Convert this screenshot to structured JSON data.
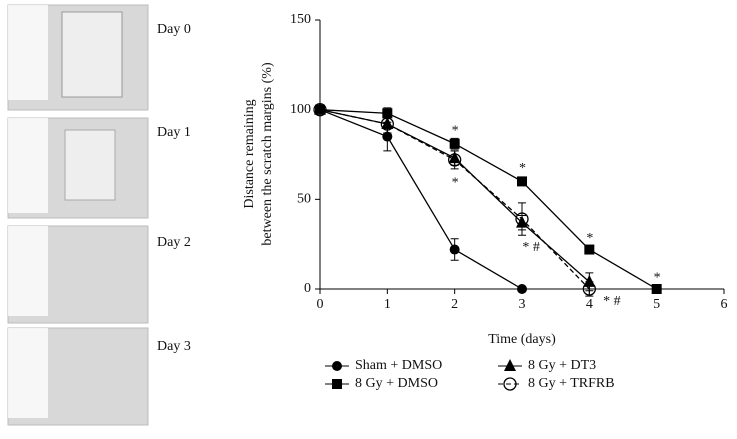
{
  "panels": [
    "Day 0",
    "Day 1",
    "Day 2",
    "Day 3"
  ],
  "chart_data": {
    "type": "line",
    "ylabel": [
      "Distance remaining",
      "between the scratch margins (%)"
    ],
    "xlabel": "Time (days)",
    "x": [
      0,
      1,
      2,
      3,
      4,
      5
    ],
    "xlim": [
      0,
      6
    ],
    "xticks": [
      0,
      1,
      2,
      3,
      4,
      5,
      6
    ],
    "ylim": [
      0,
      150
    ],
    "yticks": [
      0,
      50,
      100,
      150
    ],
    "series": [
      {
        "name": "Sham + DMSO",
        "color": "#000000",
        "marker": "circle",
        "dashed": false,
        "values": [
          100,
          85,
          22,
          0,
          null,
          null
        ],
        "errors": [
          2,
          8,
          6,
          0,
          null,
          null
        ]
      },
      {
        "name": "8 Gy + DMSO",
        "color": "#000000",
        "marker": "square",
        "dashed": false,
        "values": [
          100,
          98,
          81,
          60,
          22,
          0
        ],
        "errors": [
          2,
          3,
          3,
          2,
          2,
          0
        ]
      },
      {
        "name": "8 Gy + DT3",
        "color": "#000000",
        "marker": "triangle",
        "dashed": false,
        "values": [
          100,
          92,
          73,
          37,
          4,
          null
        ],
        "errors": [
          2,
          5,
          4,
          4,
          5,
          null
        ]
      },
      {
        "name": "8 Gy + TRFRB",
        "color": "#000000",
        "marker": "open-circle",
        "dashed": true,
        "values": [
          100,
          92,
          72,
          39,
          0,
          null
        ],
        "errors": [
          2,
          5,
          5,
          9,
          4,
          null
        ]
      }
    ],
    "annotations": [
      {
        "text": "*",
        "x": 2,
        "y": 88
      },
      {
        "text": "*",
        "x": 2,
        "y": 59
      },
      {
        "text": "*",
        "x": 3,
        "y": 67
      },
      {
        "text": "* #",
        "x": 3.05,
        "y": 23
      },
      {
        "text": "*",
        "x": 4,
        "y": 28
      },
      {
        "text": "*",
        "x": 5,
        "y": 6
      },
      {
        "text": "* #",
        "x": 4.25,
        "y": -7
      }
    ]
  }
}
